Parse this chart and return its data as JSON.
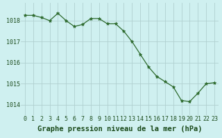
{
  "x": [
    0,
    1,
    2,
    3,
    4,
    5,
    6,
    7,
    8,
    9,
    10,
    11,
    12,
    13,
    14,
    15,
    16,
    17,
    18,
    19,
    20,
    21,
    22,
    23
  ],
  "y": [
    1018.25,
    1018.25,
    1018.15,
    1018.0,
    1018.35,
    1018.0,
    1017.72,
    1017.82,
    1018.1,
    1018.1,
    1017.85,
    1017.85,
    1017.5,
    1017.0,
    1016.4,
    1015.8,
    1015.35,
    1015.1,
    1014.85,
    1014.2,
    1014.15,
    1014.55,
    1015.0,
    1015.05
  ],
  "line_color": "#2d6a2d",
  "marker": "*",
  "marker_size": 3.5,
  "background_color": "#cff0f0",
  "grid_color": "#b0d0d0",
  "xlabel": "Graphe pression niveau de la mer (hPa)",
  "xlabel_fontsize": 7.5,
  "xlabel_bold": true,
  "xlabel_color": "#1a4a1a",
  "tick_labels": [
    "0",
    "1",
    "2",
    "3",
    "4",
    "5",
    "6",
    "7",
    "8",
    "9",
    "10",
    "11",
    "12",
    "13",
    "14",
    "15",
    "16",
    "17",
    "18",
    "19",
    "20",
    "21",
    "22",
    "23"
  ],
  "yticks": [
    1014,
    1015,
    1016,
    1017,
    1018
  ],
  "ylim": [
    1013.5,
    1018.85
  ],
  "xlim": [
    -0.5,
    23.5
  ],
  "tick_fontsize": 6.0,
  "tick_color": "#1a4a1a"
}
